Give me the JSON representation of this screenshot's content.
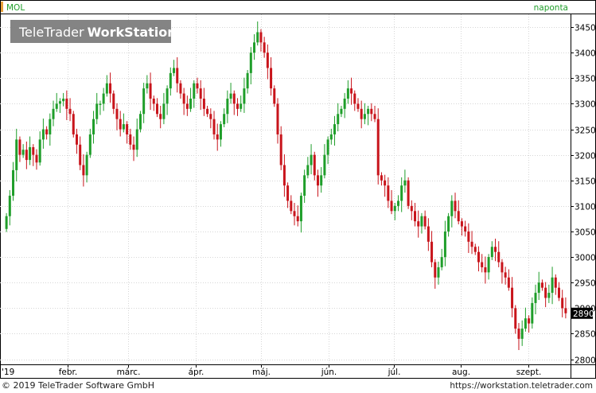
{
  "header": {
    "symbol": "MOL",
    "interval": "naponta",
    "logo_text": "TeleTrader",
    "logo_text_bold": "WorkStation"
  },
  "footer": {
    "copyright": "© 2019 TeleTrader Software GmbH",
    "url": "https://workstation.teletrader.com"
  },
  "colors": {
    "up": "#1f9e2a",
    "down": "#c8141b",
    "grid": "#d6d6d6",
    "axis": "#000000",
    "price_badge_bg": "#000000",
    "price_badge_fg": "#ffffff",
    "header_accent": "#e8a13a"
  },
  "chart_data": {
    "type": "candlestick",
    "title": "MOL",
    "y_range": [
      2790,
      3475
    ],
    "y_ticks": [
      2800,
      2850,
      2900,
      2950,
      3000,
      3050,
      3100,
      3150,
      3200,
      3250,
      3300,
      3350,
      3400,
      3450
    ],
    "last_price": "2890",
    "grid": true,
    "x_range": [
      "2019-01-02",
      "2019-09-20"
    ],
    "x_ticks": [
      {
        "label": "'19",
        "date": "2019-01-01"
      },
      {
        "label": "febr.",
        "date": "2019-02-01"
      },
      {
        "label": "márc.",
        "date": "2019-03-01"
      },
      {
        "label": "ápr.",
        "date": "2019-04-01"
      },
      {
        "label": "máj.",
        "date": "2019-05-01"
      },
      {
        "label": "jún.",
        "date": "2019-06-01"
      },
      {
        "label": "júl.",
        "date": "2019-07-01"
      },
      {
        "label": "aug.",
        "date": "2019-08-01"
      },
      {
        "label": "szept.",
        "date": "2019-09-01"
      }
    ],
    "closes": [
      3080,
      3120,
      3170,
      3230,
      3200,
      3210,
      3190,
      3215,
      3200,
      3185,
      3230,
      3250,
      3240,
      3270,
      3290,
      3300,
      3305,
      3310,
      3290,
      3280,
      3240,
      3220,
      3180,
      3160,
      3200,
      3240,
      3270,
      3300,
      3300,
      3320,
      3340,
      3320,
      3290,
      3270,
      3250,
      3260,
      3240,
      3220,
      3210,
      3250,
      3280,
      3330,
      3340,
      3310,
      3300,
      3280,
      3270,
      3300,
      3330,
      3360,
      3370,
      3340,
      3320,
      3300,
      3290,
      3310,
      3340,
      3330,
      3310,
      3290,
      3280,
      3270,
      3240,
      3230,
      3260,
      3280,
      3310,
      3320,
      3300,
      3290,
      3300,
      3330,
      3360,
      3400,
      3420,
      3440,
      3420,
      3400,
      3370,
      3330,
      3300,
      3240,
      3180,
      3140,
      3110,
      3090,
      3080,
      3070,
      3120,
      3160,
      3180,
      3200,
      3160,
      3140,
      3160,
      3200,
      3230,
      3240,
      3260,
      3280,
      3290,
      3310,
      3330,
      3320,
      3300,
      3290,
      3270,
      3280,
      3290,
      3280,
      3270,
      3160,
      3150,
      3140,
      3110,
      3090,
      3100,
      3110,
      3140,
      3150,
      3100,
      3090,
      3070,
      3060,
      3080,
      3060,
      3030,
      2990,
      2960,
      2980,
      3000,
      3050,
      3080,
      3110,
      3090,
      3070,
      3060,
      3050,
      3030,
      3020,
      3010,
      2990,
      2980,
      2970,
      3000,
      3020,
      3010,
      2990,
      2970,
      2960,
      2940,
      2900,
      2860,
      2840,
      2860,
      2880,
      2870,
      2910,
      2930,
      2950,
      2940,
      2920,
      2930,
      2960,
      2940,
      2920,
      2900,
      2890
    ]
  }
}
